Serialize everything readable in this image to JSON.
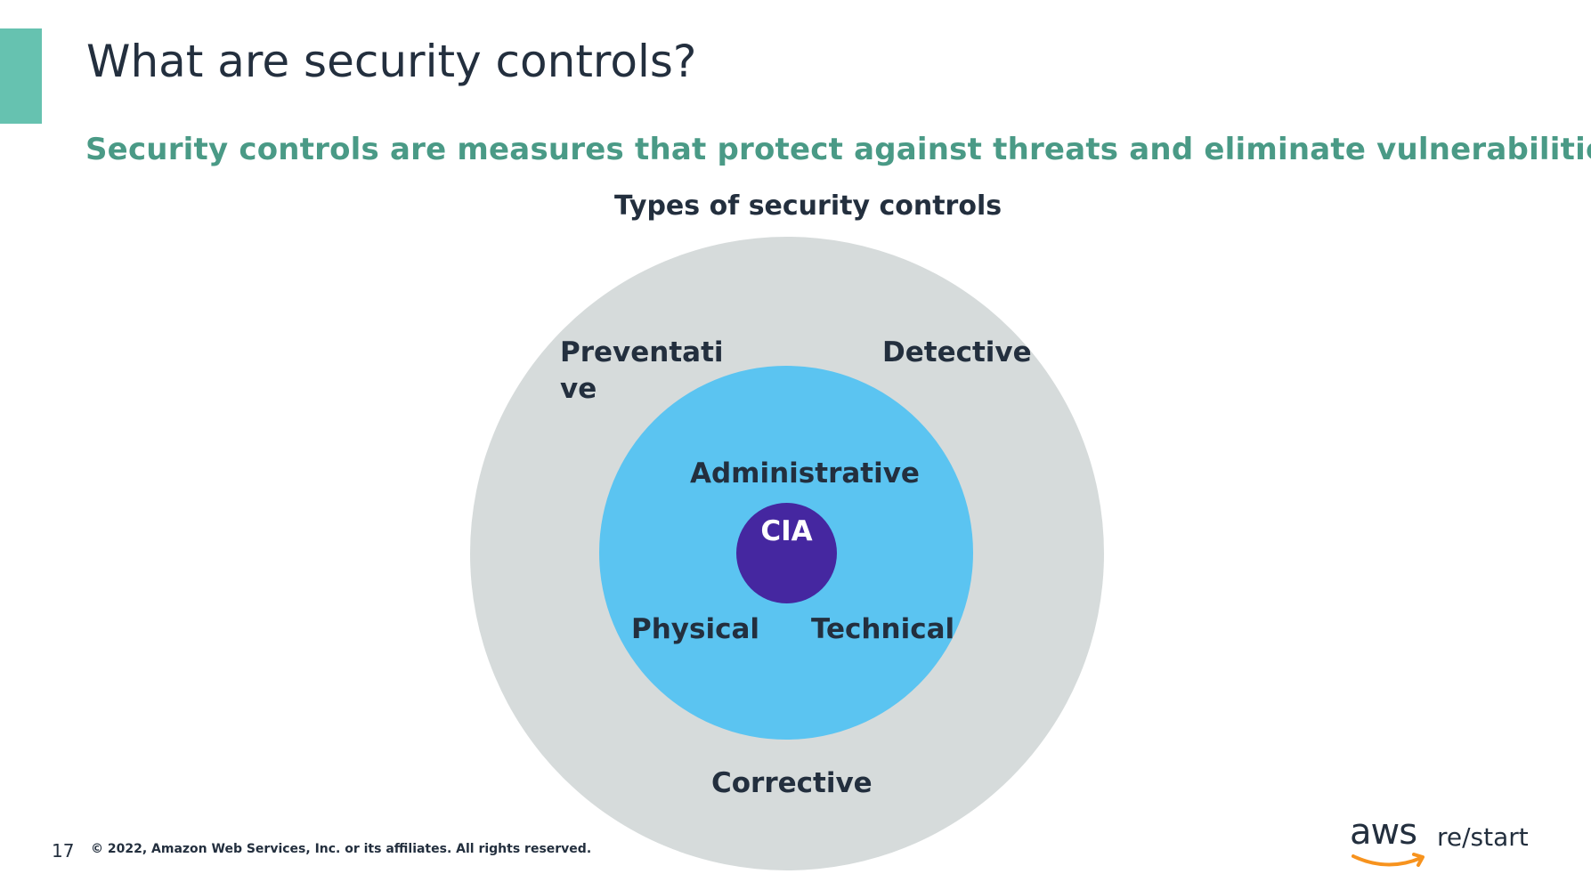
{
  "slide": {
    "title": "What are security controls?",
    "subtitle": "Security controls are measures that protect against threats and eliminate vulnerabilities.",
    "page_number": "17",
    "copyright": "© 2022, Amazon Web Services, Inc. or its affiliates. All rights reserved."
  },
  "diagram": {
    "title": "Types of security controls",
    "outer_labels": {
      "preventative": "Preventative",
      "detective": "Detective",
      "corrective": "Corrective"
    },
    "inner_labels": {
      "administrative": "Administrative",
      "physical": "Physical",
      "technical": "Technical"
    },
    "core_label": "CIA"
  },
  "branding": {
    "logo_aws": "aws",
    "logo_product": "re/start"
  },
  "colors": {
    "accent_bar": "#66c2b0",
    "subtitle": "#4a9a86",
    "outer_ring": "#d6dbdb",
    "inner_ring": "#5bc4f1",
    "core": "#4527a0",
    "text": "#232f3e",
    "aws_smile": "#f7931e"
  }
}
